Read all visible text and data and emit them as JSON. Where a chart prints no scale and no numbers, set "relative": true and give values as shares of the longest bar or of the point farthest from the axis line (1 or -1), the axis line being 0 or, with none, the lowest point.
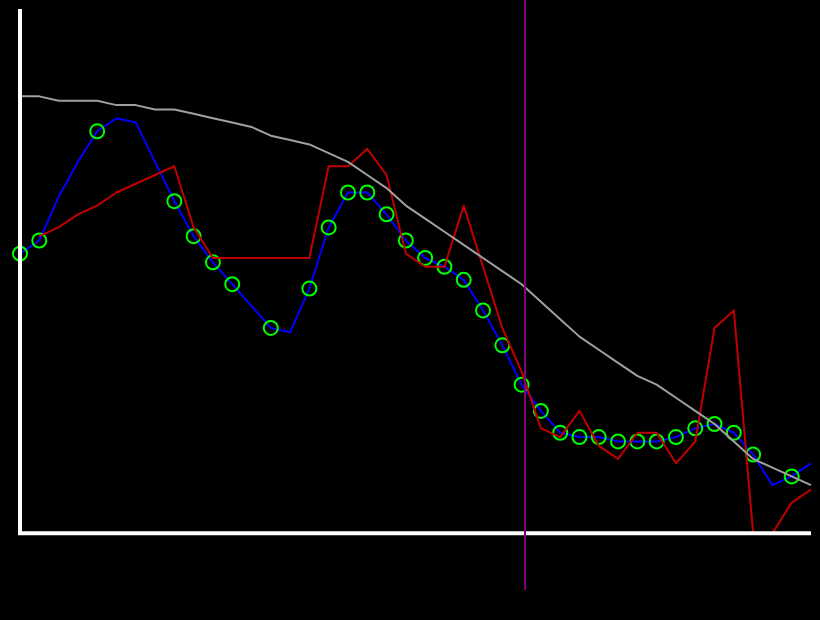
{
  "chart_data": {
    "type": "line",
    "relative": true,
    "legend": false,
    "categories": [
      null,
      null,
      null,
      null,
      null,
      null,
      null,
      null,
      null,
      null,
      null,
      null,
      null,
      null,
      null,
      null,
      null,
      null,
      null,
      null,
      null,
      null,
      null,
      null,
      null,
      null,
      null,
      null,
      null,
      null,
      null,
      null,
      null,
      null,
      null,
      null,
      null,
      null,
      null,
      null,
      null,
      null
    ],
    "series": [
      {
        "color": "#a0a0a0",
        "values": [
          1.0,
          1.0,
          0.99,
          0.99,
          0.99,
          0.98,
          0.98,
          0.97,
          0.97,
          0.96,
          0.95,
          0.94,
          0.93,
          0.91,
          0.9,
          0.89,
          0.87,
          0.85,
          0.82,
          0.79,
          0.75,
          0.72,
          0.69,
          0.66,
          0.63,
          0.6,
          0.57,
          0.53,
          0.49,
          0.45,
          0.42,
          0.39,
          0.36,
          0.34,
          0.31,
          0.28,
          0.25,
          0.21,
          0.17,
          0.15,
          0.13,
          0.11
        ],
        "marker": "none"
      },
      {
        "color": "#c00000",
        "values": [
          null,
          0.68,
          0.7,
          0.73,
          0.75,
          0.78,
          0.8,
          0.82,
          0.84,
          0.7,
          0.63,
          0.63,
          0.63,
          0.63,
          0.63,
          0.63,
          0.84,
          0.84,
          0.88,
          0.82,
          0.64,
          0.61,
          0.61,
          0.75,
          0.61,
          0.47,
          0.37,
          0.24,
          0.22,
          0.28,
          0.2,
          0.17,
          0.23,
          0.23,
          0.16,
          0.21,
          0.47,
          0.51,
          0,
          0,
          0.07,
          0.1
        ],
        "marker": "none"
      },
      {
        "color": "#0000ff",
        "marker": "circle",
        "values": [
          0.64,
          0.67,
          0.77,
          0.85,
          0.92,
          0.95,
          0.94,
          0.85,
          0.76,
          0.68,
          0.62,
          0.57,
          0.52,
          0.47,
          0.46,
          0.56,
          0.7,
          0.78,
          0.78,
          0.73,
          0.67,
          0.63,
          0.61,
          0.58,
          0.51,
          0.43,
          0.34,
          0.28,
          0.23,
          0.22,
          0.22,
          0.21,
          0.21,
          0.21,
          0.22,
          0.24,
          0.25,
          0.23,
          0.18,
          0.11,
          0.13,
          0.16
        ],
        "colors": [
          "#00ff00",
          "#00ff00",
          null,
          null,
          "#00ff00",
          null,
          null,
          null,
          "#00ff00",
          "#00ff00",
          "#00ff00",
          "#00ff00",
          null,
          "#00ff00",
          null,
          "#00ff00",
          "#00ff00",
          "#00ff00",
          "#00ff00",
          "#00ff00",
          "#00ff00",
          "#00ff00",
          "#00ff00",
          "#00ff00",
          "#00ff00",
          "#00ff00",
          "#00ff00",
          "#00ff00",
          "#00ff00",
          "#00ff00",
          "#00ff00",
          "#00ff00",
          "#00ff00",
          "#00ff00",
          "#00ff00",
          "#00ff00",
          "#00ff00",
          "#00ff00",
          "#00ff00",
          null,
          "#00ff00",
          null
        ]
      }
    ]
  }
}
